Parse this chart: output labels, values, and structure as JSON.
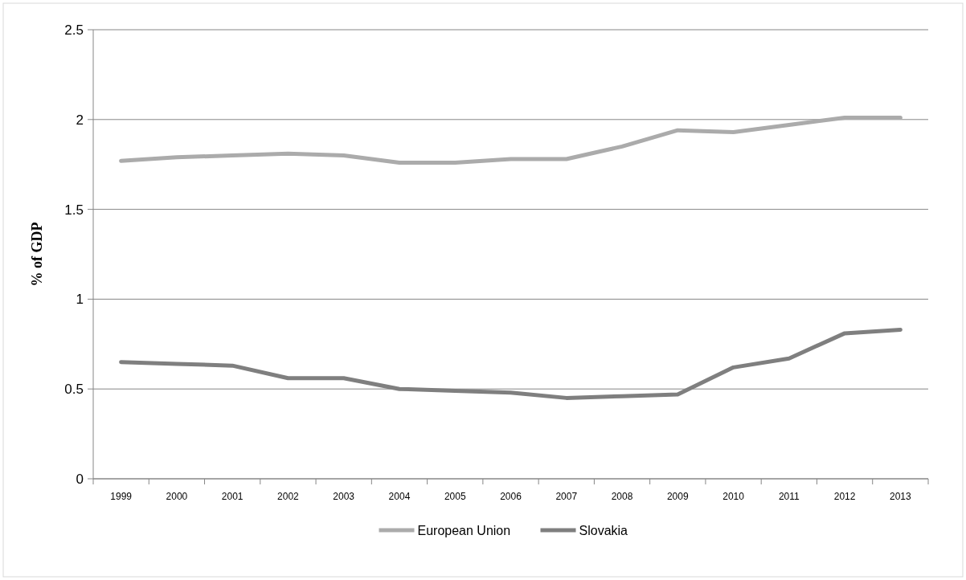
{
  "chart_data": {
    "type": "line",
    "ylabel": "% of GDP",
    "categories": [
      "1999",
      "2000",
      "2001",
      "2002",
      "2003",
      "2004",
      "2005",
      "2006",
      "2007",
      "2008",
      "2009",
      "2010",
      "2011",
      "2012",
      "2013"
    ],
    "series": [
      {
        "name": "European Union",
        "color": "#ababab",
        "values": [
          1.77,
          1.79,
          1.8,
          1.81,
          1.8,
          1.76,
          1.76,
          1.78,
          1.78,
          1.85,
          1.94,
          1.93,
          1.97,
          2.01,
          2.01
        ]
      },
      {
        "name": "Slovakia",
        "color": "#7f7f7f",
        "values": [
          0.65,
          0.64,
          0.63,
          0.56,
          0.56,
          0.5,
          0.49,
          0.48,
          0.45,
          0.46,
          0.47,
          0.62,
          0.67,
          0.81,
          0.83
        ]
      }
    ],
    "ylim": [
      0,
      2.5
    ],
    "yticks": [
      0,
      0.5,
      1,
      1.5,
      2,
      2.5
    ],
    "grid": "y",
    "legend": "bottom",
    "marker": "none",
    "line_style": "solid"
  }
}
